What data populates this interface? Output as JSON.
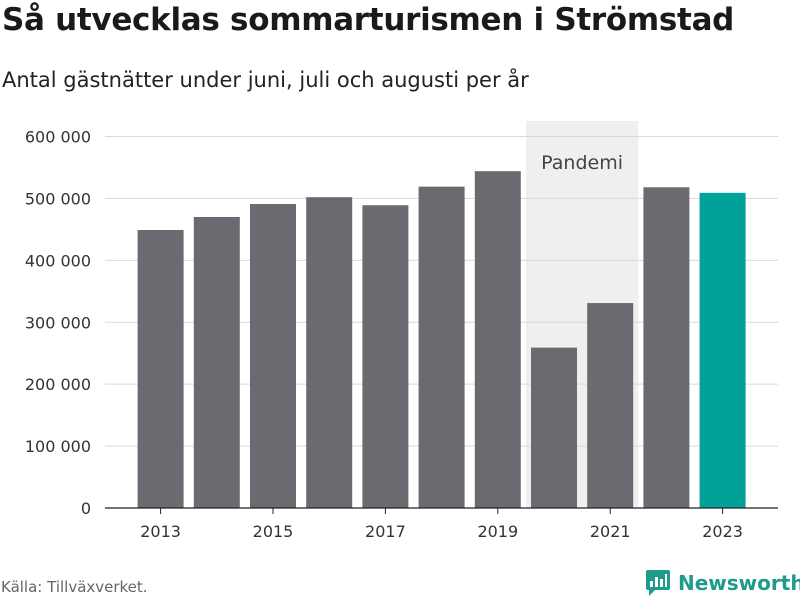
{
  "header": {
    "title": "Så utvecklas sommarturismen i Strömstad",
    "subtitle": "Antal gästnätter under juni, juli och augusti per år"
  },
  "footer": {
    "source": "Källa: Tillväxverket.",
    "brand": "Newsworthy",
    "brand_icon": "newsworthy-logo-icon"
  },
  "colors": {
    "bar": "#6b6a70",
    "highlight": "#00a199",
    "band": "#efefef",
    "grid": "#d9d9d9",
    "brand": "#1e9b8a"
  },
  "chart_data": {
    "type": "bar",
    "categories": [
      "2013",
      "2014",
      "2015",
      "2016",
      "2017",
      "2018",
      "2019",
      "2020",
      "2021",
      "2022",
      "2023"
    ],
    "values": [
      449000,
      470000,
      491000,
      502000,
      489000,
      519000,
      544000,
      259000,
      331000,
      518000,
      509000
    ],
    "highlight_category": "2023",
    "ylim": [
      0,
      625000
    ],
    "yticks": [
      0,
      100000,
      200000,
      300000,
      400000,
      500000,
      600000
    ],
    "ytick_labels": [
      "0",
      "100 000",
      "200 000",
      "300 000",
      "400 000",
      "500 000",
      "600 000"
    ],
    "xtick_labels": [
      "2013",
      "2015",
      "2017",
      "2019",
      "2021",
      "2023"
    ],
    "annotation": {
      "label": "Pandemi",
      "start": "2020",
      "end": "2021"
    },
    "grid": true,
    "legend": "none"
  }
}
